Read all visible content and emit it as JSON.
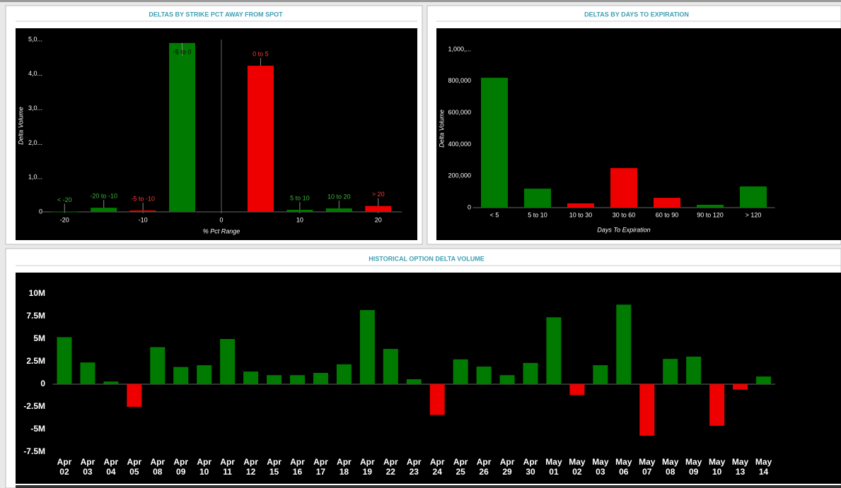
{
  "chart_data": [
    {
      "type": "bar",
      "title": "DELTAS BY STRIKE PCT AWAY FROM SPOT",
      "x_label": "% Pct Range",
      "y_label": "Delta Volume",
      "x": [
        -20,
        -15,
        -10,
        -5,
        5,
        10,
        15,
        20
      ],
      "categories": [
        "< -20",
        "-20 to -10",
        "-5 to -10",
        "-5 to 0",
        "0 to 5",
        "5 to 10",
        "10 to 20",
        "> 20"
      ],
      "values": [
        10000,
        120000,
        40000,
        4900000,
        4240000,
        60000,
        100000,
        170000
      ],
      "colors": [
        "#007a00",
        "#007a00",
        "#ee0000",
        "#007a00",
        "#ee0000",
        "#007a00",
        "#007a00",
        "#ee0000"
      ],
      "xlim": [
        -23,
        23
      ],
      "xticks": [
        -20,
        -10,
        0,
        10,
        20
      ],
      "ylim": [
        0,
        5000000
      ],
      "yticks": [
        0,
        {
          "value": 1000000,
          "label": "1,0..."
        },
        {
          "value": 2000000,
          "label": "2,0..."
        },
        {
          "value": 3000000,
          "label": "3,0..."
        },
        {
          "value": 4000000,
          "label": "4,0..."
        },
        {
          "value": 5000000,
          "label": "5,0..."
        }
      ]
    },
    {
      "type": "bar",
      "title": "DELTAS BY DAYS TO EXPIRATION",
      "x_label": "Days To Expiration",
      "y_label": "Delta Volume",
      "categories": [
        "< 5",
        "5 to 10",
        "10 to 30",
        "30 to 60",
        "60 to 90",
        "90 to 120",
        "> 120"
      ],
      "values": [
        821000,
        120000,
        27000,
        250000,
        62000,
        18000,
        134000
      ],
      "colors": [
        "#007a00",
        "#007a00",
        "#ee0000",
        "#ee0000",
        "#ee0000",
        "#007a00",
        "#007a00"
      ],
      "ylim": [
        0,
        1000000
      ],
      "yticks": [
        0,
        {
          "value": 200000,
          "label": "200,000"
        },
        {
          "value": 400000,
          "label": "400,000"
        },
        {
          "value": 600000,
          "label": "600,000"
        },
        {
          "value": 800000,
          "label": "800,000"
        },
        {
          "value": 1000000,
          "label": "1,000,..."
        }
      ]
    },
    {
      "type": "bar",
      "title": "HISTORICAL OPTION DELTA VOLUME",
      "categories": [
        [
          "Apr",
          "02"
        ],
        [
          "Apr",
          "03"
        ],
        [
          "Apr",
          "04"
        ],
        [
          "Apr",
          "05"
        ],
        [
          "Apr",
          "08"
        ],
        [
          "Apr",
          "09"
        ],
        [
          "Apr",
          "10"
        ],
        [
          "Apr",
          "11"
        ],
        [
          "Apr",
          "12"
        ],
        [
          "Apr",
          "15"
        ],
        [
          "Apr",
          "16"
        ],
        [
          "Apr",
          "17"
        ],
        [
          "Apr",
          "18"
        ],
        [
          "Apr",
          "19"
        ],
        [
          "Apr",
          "22"
        ],
        [
          "Apr",
          "23"
        ],
        [
          "Apr",
          "24"
        ],
        [
          "Apr",
          "25"
        ],
        [
          "Apr",
          "26"
        ],
        [
          "Apr",
          "29"
        ],
        [
          "Apr",
          "30"
        ],
        [
          "May",
          "01"
        ],
        [
          "May",
          "02"
        ],
        [
          "May",
          "03"
        ],
        [
          "May",
          "06"
        ],
        [
          "May",
          "07"
        ],
        [
          "May",
          "08"
        ],
        [
          "May",
          "09"
        ],
        [
          "May",
          "10"
        ],
        [
          "May",
          "13"
        ],
        [
          "May",
          "14"
        ]
      ],
      "values": [
        5200000,
        2400000,
        300000,
        -2500000,
        4100000,
        1900000,
        2100000,
        5000000,
        1400000,
        1000000,
        1000000,
        1250000,
        2200000,
        8200000,
        3900000,
        550000,
        -3400000,
        2750000,
        1950000,
        1000000,
        2350000,
        7400000,
        -1200000,
        2100000,
        8800000,
        -5700000,
        2800000,
        3050000,
        -4600000,
        -600000,
        850000
      ],
      "colors": [
        "#007a00",
        "#007a00",
        "#007a00",
        "#ee0000",
        "#007a00",
        "#007a00",
        "#007a00",
        "#007a00",
        "#007a00",
        "#007a00",
        "#007a00",
        "#007a00",
        "#007a00",
        "#007a00",
        "#007a00",
        "#007a00",
        "#ee0000",
        "#007a00",
        "#007a00",
        "#007a00",
        "#007a00",
        "#007a00",
        "#ee0000",
        "#007a00",
        "#007a00",
        "#ee0000",
        "#007a00",
        "#007a00",
        "#ee0000",
        "#ee0000",
        "#007a00"
      ],
      "ylim": [
        -7500000,
        10000000
      ],
      "yticks": [
        {
          "value": -7500000,
          "label": "-7.5M"
        },
        {
          "value": -5000000,
          "label": "-5M"
        },
        {
          "value": -2500000,
          "label": "-2.5M"
        },
        0,
        {
          "value": 2500000,
          "label": "2.5M"
        },
        {
          "value": 5000000,
          "label": "5M"
        },
        {
          "value": 7500000,
          "label": "7.5M"
        },
        {
          "value": 10000000,
          "label": "10M"
        }
      ]
    }
  ]
}
